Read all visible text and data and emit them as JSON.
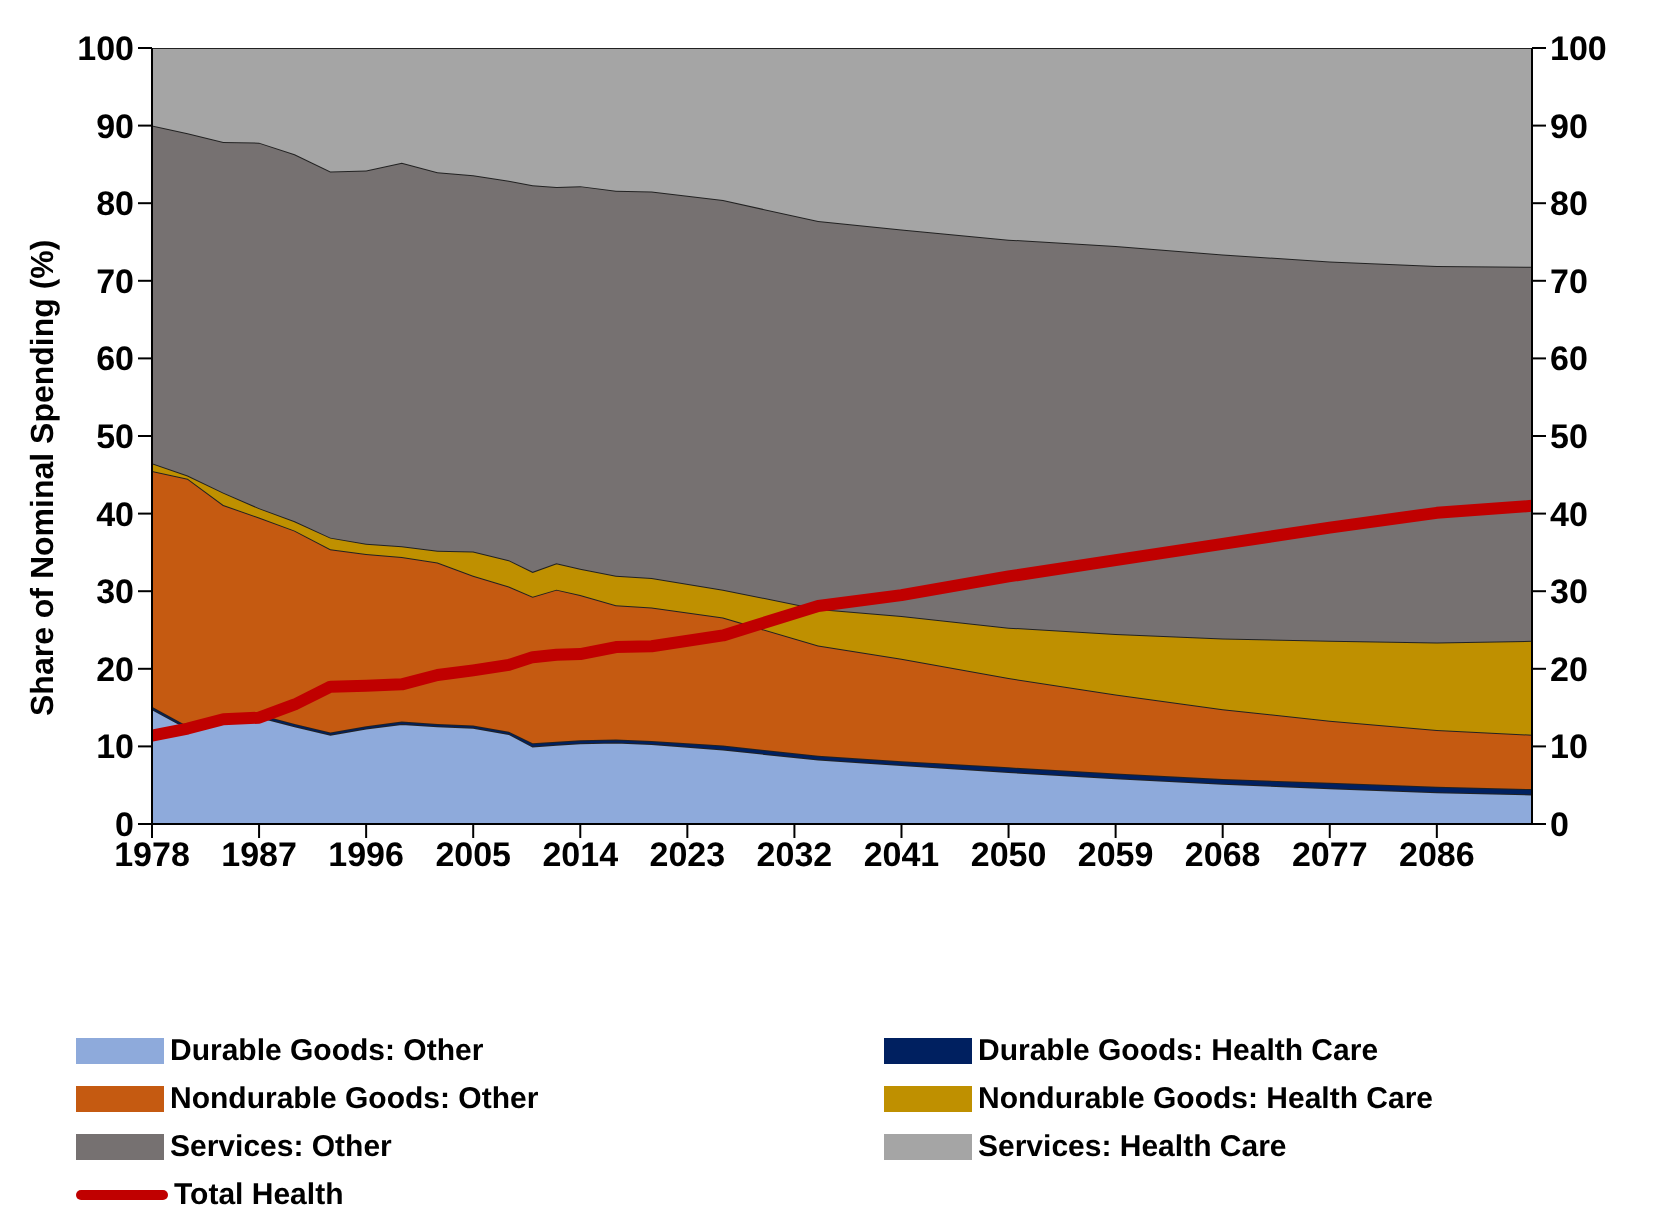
{
  "chart_data": {
    "type": "area",
    "stacked": true,
    "ylabel": "Share of Nominal Spending (%)",
    "x": [
      1978,
      1981,
      1984,
      1987,
      1990,
      1993,
      1996,
      1999,
      2002,
      2005,
      2008,
      2010,
      2012,
      2014,
      2017,
      2020,
      2026,
      2034,
      2041,
      2050,
      2059,
      2068,
      2077,
      2086,
      2094
    ],
    "xlim": [
      1978,
      2094
    ],
    "xticks": [
      1978,
      1987,
      1996,
      2005,
      2014,
      2023,
      2032,
      2041,
      2050,
      2059,
      2068,
      2077,
      2086
    ],
    "ylim": [
      0,
      100
    ],
    "yticks": [
      0,
      10,
      20,
      30,
      40,
      50,
      60,
      70,
      80,
      90,
      100
    ],
    "y2lim": [
      0,
      100
    ],
    "y2ticks": [
      0,
      10,
      20,
      30,
      40,
      50,
      60,
      70,
      80,
      90,
      100
    ],
    "grid": false,
    "legend": "bottom",
    "marker": "none",
    "series": [
      {
        "name": "Durable Goods: Other",
        "color": "#8eaadb",
        "values": [
          14.8,
          12.3,
          13.0,
          13.8,
          12.6,
          11.5,
          12.3,
          12.9,
          12.6,
          12.4,
          11.6,
          10.0,
          10.2,
          10.4,
          10.5,
          10.3,
          9.6,
          8.3,
          7.6,
          6.7,
          5.9,
          5.2,
          4.6,
          4.1,
          3.8
        ]
      },
      {
        "name": "Durable Goods: Health Care",
        "color": "#002060",
        "values": [
          0.3,
          0.3,
          0.3,
          0.3,
          0.3,
          0.3,
          0.3,
          0.3,
          0.3,
          0.3,
          0.3,
          0.4,
          0.4,
          0.4,
          0.4,
          0.4,
          0.5,
          0.5,
          0.5,
          0.6,
          0.6,
          0.6,
          0.7,
          0.7,
          0.7
        ]
      },
      {
        "name": "Nondurable Goods: Other",
        "color": "#c55a11",
        "values": [
          30.4,
          31.9,
          27.8,
          25.4,
          24.9,
          23.6,
          22.2,
          21.2,
          20.8,
          19.3,
          18.7,
          18.9,
          19.6,
          18.7,
          17.3,
          17.2,
          16.5,
          14.2,
          13.2,
          11.5,
          10.2,
          9.0,
          8.0,
          7.3,
          7.0
        ]
      },
      {
        "name": "Nondurable Goods: Health Care",
        "color": "#bf9000",
        "values": [
          1.0,
          0.4,
          1.6,
          1.2,
          1.2,
          1.5,
          1.3,
          1.4,
          1.5,
          3.1,
          3.4,
          3.2,
          3.4,
          3.4,
          3.8,
          3.8,
          3.6,
          4.7,
          5.5,
          6.5,
          7.8,
          9.1,
          10.3,
          11.3,
          12.1
        ]
      },
      {
        "name": "Services: Other",
        "color": "#767171",
        "values": [
          43.5,
          44.1,
          45.2,
          47.1,
          47.3,
          47.2,
          48.1,
          49.4,
          48.8,
          48.5,
          48.9,
          49.8,
          48.5,
          49.3,
          49.6,
          49.8,
          50.2,
          50.0,
          49.8,
          50.0,
          50.0,
          49.5,
          48.9,
          48.5,
          48.2
        ]
      },
      {
        "name": "Services: Health Care",
        "color": "#a5a5a5",
        "values": [
          10.0,
          11.0,
          12.1,
          12.2,
          13.7,
          15.9,
          15.8,
          14.8,
          16.0,
          16.4,
          17.1,
          17.7,
          17.9,
          17.8,
          18.4,
          18.5,
          19.6,
          22.3,
          23.4,
          24.7,
          25.5,
          26.6,
          27.5,
          28.1,
          28.2
        ]
      },
      {
        "name": "Total Health",
        "type": "line",
        "color": "#c00000",
        "values": [
          11.4,
          12.3,
          13.5,
          13.7,
          15.4,
          17.7,
          17.8,
          18.0,
          19.2,
          19.8,
          20.5,
          21.5,
          21.8,
          21.9,
          22.8,
          22.9,
          24.3,
          28.1,
          29.5,
          31.9,
          34.0,
          36.1,
          38.2,
          40.1,
          41.0
        ]
      }
    ]
  }
}
